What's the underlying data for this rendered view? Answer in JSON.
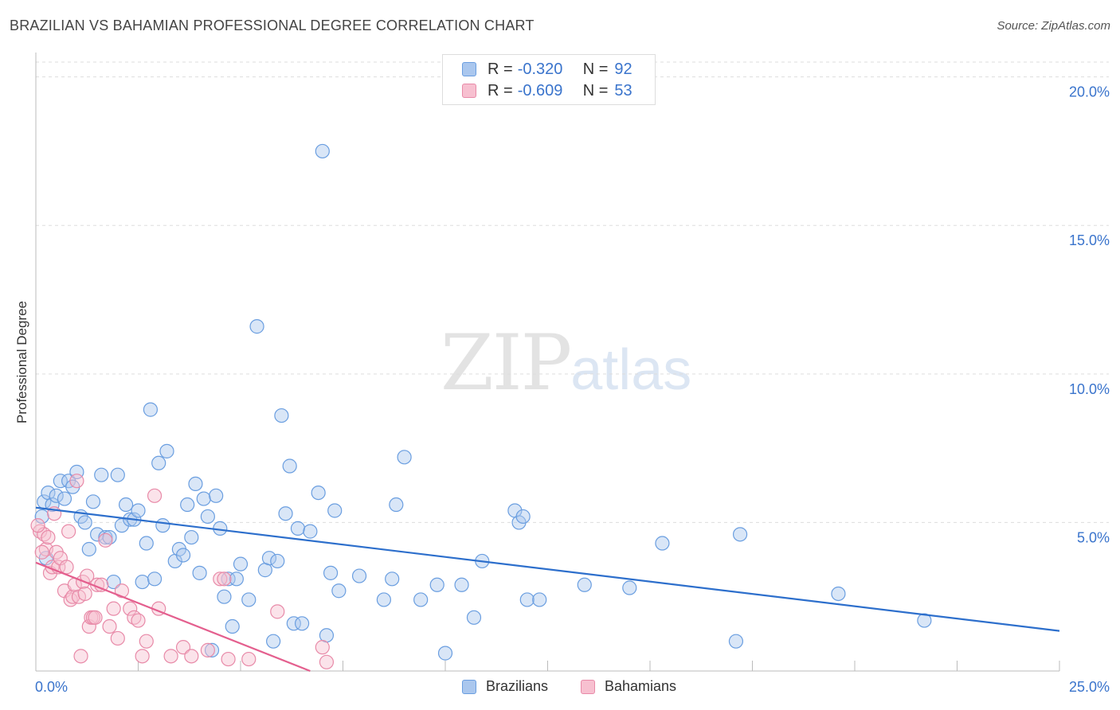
{
  "header": {
    "title": "BRAZILIAN VS BAHAMIAN PROFESSIONAL DEGREE CORRELATION CHART",
    "source": "Source: ZipAtlas.com"
  },
  "watermark": {
    "zip": "ZIP",
    "atlas": "atlas"
  },
  "legend_stats": [
    {
      "r_label": "R =",
      "r_value": "-0.320",
      "n_label": "N =",
      "n_value": "92",
      "color": "#aac7ee",
      "border": "#6a9ee0"
    },
    {
      "r_label": "R =",
      "r_value": "-0.609",
      "n_label": "N =",
      "n_value": "53",
      "color": "#f7c0d0",
      "border": "#e88aa8"
    }
  ],
  "chart_data": {
    "type": "scatter",
    "title": "BRAZILIAN VS BAHAMIAN PROFESSIONAL DEGREE CORRELATION CHART",
    "xlabel": "",
    "ylabel": "Professional Degree",
    "xlim": [
      0,
      25
    ],
    "ylim": [
      0,
      20.5
    ],
    "x_tick_labels": {
      "left": "0.0%",
      "right": "25.0%"
    },
    "y_ticks": [
      {
        "value": 20,
        "label": "20.0%"
      },
      {
        "value": 15,
        "label": "15.0%"
      },
      {
        "value": 10,
        "label": "10.0%"
      },
      {
        "value": 5,
        "label": "5.0%"
      }
    ],
    "grid": true,
    "legend": "bottom-center",
    "series": [
      {
        "name": "Brazilians",
        "color": "#6a9ee0",
        "fill": "#aac7ee",
        "trend": {
          "x": [
            0,
            25
          ],
          "y": [
            5.5,
            1.35
          ],
          "color": "#2d6fcc"
        },
        "points": [
          [
            0.2,
            5.7
          ],
          [
            0.3,
            6.0
          ],
          [
            0.4,
            5.6
          ],
          [
            0.5,
            5.9
          ],
          [
            0.6,
            6.4
          ],
          [
            0.7,
            5.8
          ],
          [
            0.8,
            6.4
          ],
          [
            0.9,
            6.2
          ],
          [
            1.0,
            6.7
          ],
          [
            1.1,
            5.2
          ],
          [
            1.2,
            5.0
          ],
          [
            1.3,
            4.1
          ],
          [
            1.4,
            5.7
          ],
          [
            1.5,
            4.6
          ],
          [
            1.6,
            6.6
          ],
          [
            1.7,
            4.5
          ],
          [
            1.8,
            4.5
          ],
          [
            1.9,
            3.0
          ],
          [
            2.0,
            6.6
          ],
          [
            2.1,
            4.9
          ],
          [
            2.2,
            5.6
          ],
          [
            2.3,
            5.1
          ],
          [
            2.4,
            5.1
          ],
          [
            2.5,
            5.4
          ],
          [
            2.6,
            3.0
          ],
          [
            2.7,
            4.3
          ],
          [
            2.8,
            8.8
          ],
          [
            2.9,
            3.1
          ],
          [
            3.0,
            7.0
          ],
          [
            3.1,
            4.9
          ],
          [
            3.2,
            7.4
          ],
          [
            3.4,
            3.7
          ],
          [
            3.5,
            4.1
          ],
          [
            3.6,
            3.9
          ],
          [
            3.7,
            5.6
          ],
          [
            3.8,
            4.5
          ],
          [
            3.9,
            6.3
          ],
          [
            4.0,
            3.3
          ],
          [
            4.1,
            5.8
          ],
          [
            4.2,
            5.2
          ],
          [
            4.3,
            0.7
          ],
          [
            4.4,
            5.9
          ],
          [
            4.5,
            4.8
          ],
          [
            4.6,
            2.5
          ],
          [
            4.7,
            3.1
          ],
          [
            4.8,
            1.5
          ],
          [
            4.9,
            3.1
          ],
          [
            5.0,
            3.6
          ],
          [
            5.2,
            2.4
          ],
          [
            5.4,
            11.6
          ],
          [
            5.6,
            3.4
          ],
          [
            5.7,
            3.8
          ],
          [
            5.8,
            1.0
          ],
          [
            5.9,
            3.7
          ],
          [
            6.0,
            8.6
          ],
          [
            6.1,
            5.3
          ],
          [
            6.2,
            6.9
          ],
          [
            6.3,
            1.6
          ],
          [
            6.4,
            4.8
          ],
          [
            6.5,
            1.6
          ],
          [
            6.7,
            4.7
          ],
          [
            6.9,
            6.0
          ],
          [
            7.0,
            17.5
          ],
          [
            7.2,
            3.3
          ],
          [
            7.3,
            5.4
          ],
          [
            7.4,
            2.7
          ],
          [
            7.1,
            1.2
          ],
          [
            7.9,
            3.2
          ],
          [
            8.5,
            2.4
          ],
          [
            8.7,
            3.1
          ],
          [
            8.8,
            5.6
          ],
          [
            9.0,
            7.2
          ],
          [
            9.4,
            2.4
          ],
          [
            9.8,
            2.9
          ],
          [
            10.0,
            0.6
          ],
          [
            10.4,
            2.9
          ],
          [
            10.7,
            1.8
          ],
          [
            10.9,
            3.7
          ],
          [
            11.7,
            5.4
          ],
          [
            11.8,
            5.0
          ],
          [
            11.9,
            5.2
          ],
          [
            12.0,
            2.4
          ],
          [
            12.3,
            2.4
          ],
          [
            13.4,
            2.9
          ],
          [
            14.5,
            2.8
          ],
          [
            15.3,
            4.3
          ],
          [
            17.1,
            1.0
          ],
          [
            17.2,
            4.6
          ],
          [
            19.6,
            2.6
          ],
          [
            21.7,
            1.7
          ],
          [
            0.15,
            5.2
          ],
          [
            0.25,
            3.8
          ]
        ]
      },
      {
        "name": "Bahamians",
        "color": "#e88aa8",
        "fill": "#f7c0d0",
        "trend": {
          "x": [
            0,
            6.7
          ],
          "y": [
            3.65,
            0.0
          ],
          "color": "#e45f8e"
        },
        "points": [
          [
            0.1,
            4.7
          ],
          [
            0.2,
            4.6
          ],
          [
            0.25,
            4.1
          ],
          [
            0.3,
            4.5
          ],
          [
            0.35,
            3.3
          ],
          [
            0.4,
            3.5
          ],
          [
            0.45,
            5.3
          ],
          [
            0.5,
            4.0
          ],
          [
            0.55,
            3.5
          ],
          [
            0.6,
            3.8
          ],
          [
            0.7,
            2.7
          ],
          [
            0.75,
            3.5
          ],
          [
            0.8,
            4.7
          ],
          [
            0.85,
            2.4
          ],
          [
            0.9,
            2.5
          ],
          [
            0.95,
            2.9
          ],
          [
            1.0,
            6.4
          ],
          [
            1.05,
            2.5
          ],
          [
            1.1,
            0.5
          ],
          [
            1.15,
            3.0
          ],
          [
            1.2,
            2.6
          ],
          [
            1.25,
            3.2
          ],
          [
            1.3,
            1.5
          ],
          [
            1.35,
            1.8
          ],
          [
            1.4,
            1.8
          ],
          [
            1.45,
            1.8
          ],
          [
            1.5,
            2.9
          ],
          [
            1.6,
            2.9
          ],
          [
            1.7,
            4.4
          ],
          [
            1.8,
            1.5
          ],
          [
            1.9,
            2.1
          ],
          [
            2.0,
            1.1
          ],
          [
            2.1,
            2.7
          ],
          [
            2.3,
            2.1
          ],
          [
            2.4,
            1.8
          ],
          [
            2.5,
            1.7
          ],
          [
            2.6,
            0.5
          ],
          [
            2.7,
            1.0
          ],
          [
            2.9,
            5.9
          ],
          [
            3.0,
            2.1
          ],
          [
            3.3,
            0.5
          ],
          [
            3.6,
            0.8
          ],
          [
            3.8,
            0.5
          ],
          [
            4.2,
            0.7
          ],
          [
            4.5,
            3.1
          ],
          [
            4.6,
            3.1
          ],
          [
            4.7,
            0.4
          ],
          [
            5.2,
            0.4
          ],
          [
            5.9,
            2.0
          ],
          [
            7.0,
            0.8
          ],
          [
            7.1,
            0.3
          ],
          [
            0.15,
            4.0
          ],
          [
            0.05,
            4.9
          ]
        ]
      }
    ]
  },
  "bottom_legend": [
    {
      "label": "Brazilians",
      "color": "#aac7ee",
      "border": "#6a9ee0"
    },
    {
      "label": "Bahamians",
      "color": "#f7c0d0",
      "border": "#e88aa8"
    }
  ]
}
